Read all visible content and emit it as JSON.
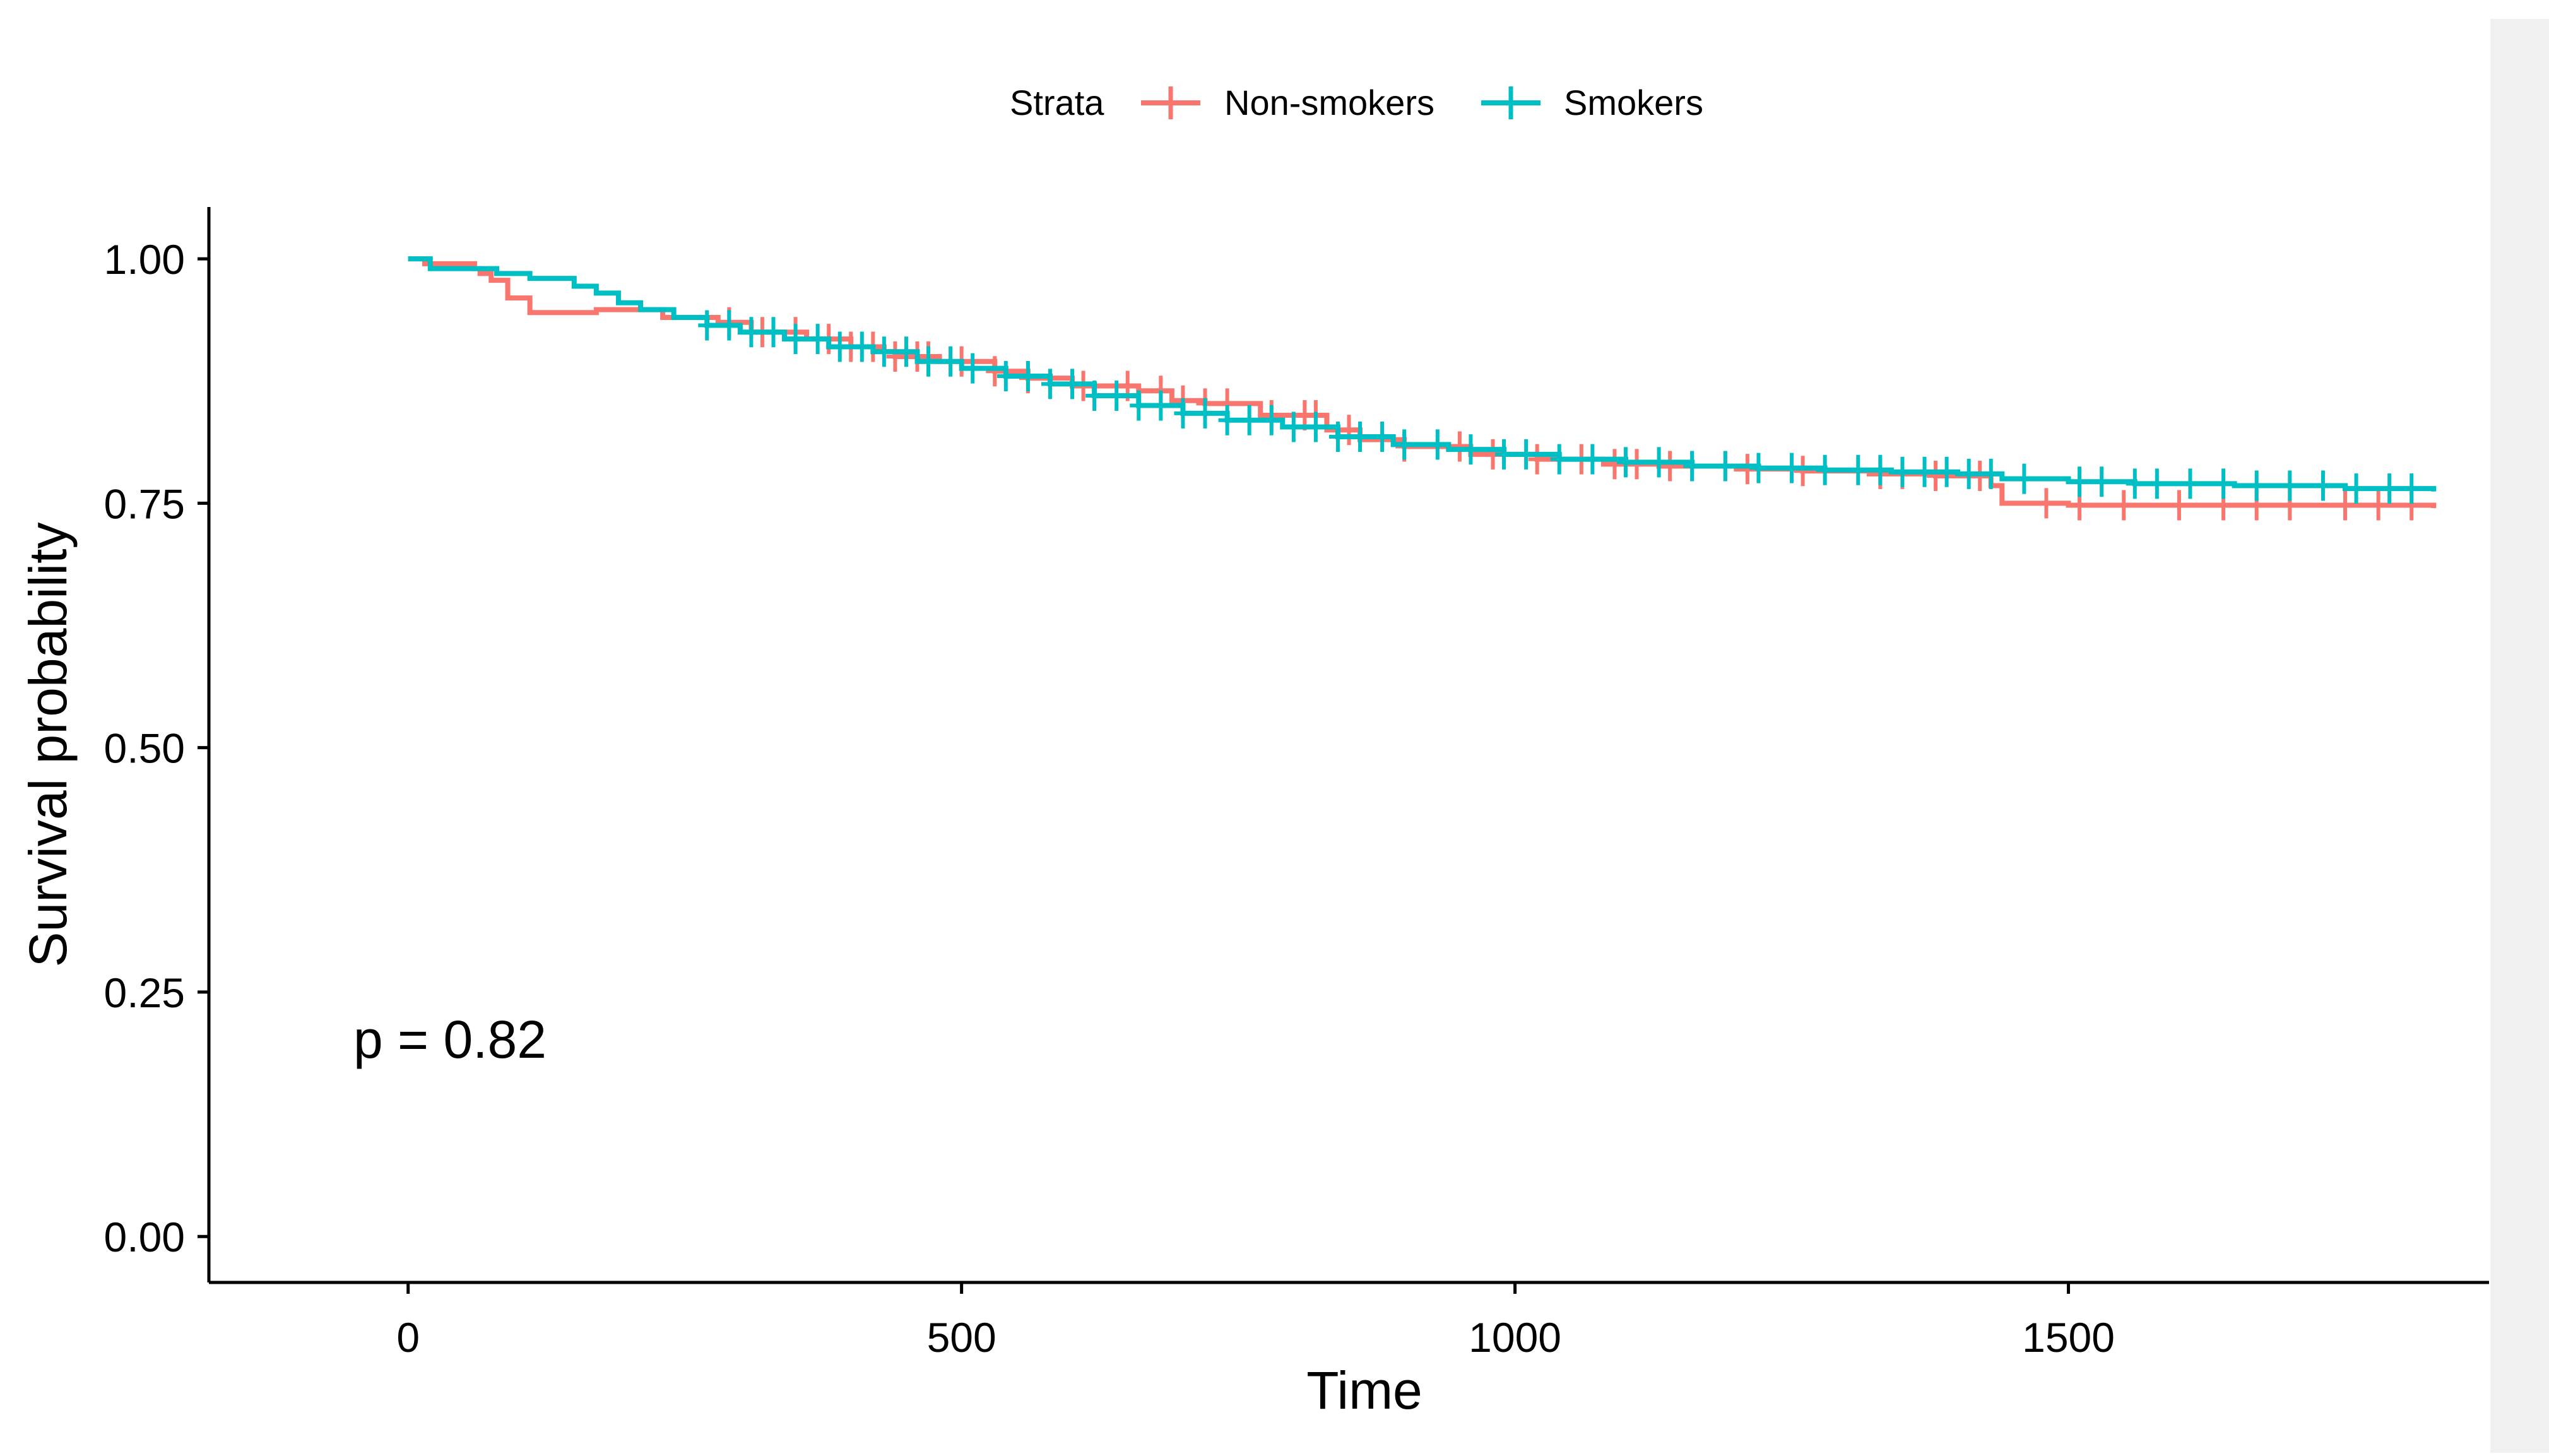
{
  "colors": {
    "non_smokers": "#F8766D",
    "smokers": "#00BFC4",
    "axis": "#000000",
    "background": "#ffffff",
    "side_panel": "#f0f0f0"
  },
  "legend": {
    "title": "Strata",
    "position": "top-center"
  },
  "annotation": {
    "text": "p = 0.82"
  },
  "chart_data": {
    "type": "line",
    "subtype": "kaplan-meier-step",
    "title": "",
    "xlabel": "Time",
    "ylabel": "Survival probability",
    "xlim": [
      -180,
      1880
    ],
    "ylim": [
      -0.047,
      1.053
    ],
    "xticks": [
      0,
      500,
      1000,
      1500
    ],
    "xtick_labels": [
      "0",
      "500",
      "1000",
      "1500"
    ],
    "yticks": [
      0,
      0.25,
      0.5,
      0.75,
      1
    ],
    "ytick_labels": [
      "0.00",
      "0.25",
      "0.50",
      "0.75",
      "1.00"
    ],
    "grid": false,
    "legend_position": "top-center",
    "annotations": [
      "p = 0.82"
    ],
    "series": [
      {
        "name": "Non-smokers",
        "color": "#F8766D",
        "steps": [
          [
            0,
            1.0
          ],
          [
            15,
            0.995
          ],
          [
            60,
            0.99
          ],
          [
            65,
            0.985
          ],
          [
            75,
            0.978
          ],
          [
            90,
            0.96
          ],
          [
            110,
            0.945
          ],
          [
            170,
            0.948
          ],
          [
            200,
            0.948
          ],
          [
            230,
            0.94
          ],
          [
            280,
            0.935
          ],
          [
            310,
            0.925
          ],
          [
            360,
            0.918
          ],
          [
            400,
            0.91
          ],
          [
            430,
            0.905
          ],
          [
            440,
            0.9
          ],
          [
            480,
            0.895
          ],
          [
            530,
            0.885
          ],
          [
            560,
            0.878
          ],
          [
            600,
            0.87
          ],
          [
            640,
            0.87
          ],
          [
            660,
            0.865
          ],
          [
            690,
            0.855
          ],
          [
            720,
            0.852
          ],
          [
            770,
            0.84
          ],
          [
            830,
            0.825
          ],
          [
            860,
            0.815
          ],
          [
            900,
            0.808
          ],
          [
            960,
            0.8
          ],
          [
            1020,
            0.795
          ],
          [
            1080,
            0.79
          ],
          [
            1130,
            0.788
          ],
          [
            1200,
            0.785
          ],
          [
            1260,
            0.783
          ],
          [
            1320,
            0.78
          ],
          [
            1380,
            0.778
          ],
          [
            1430,
            0.768
          ],
          [
            1440,
            0.75
          ],
          [
            1500,
            0.748
          ],
          [
            1830,
            0.745
          ]
        ],
        "censor_times": [
          290,
          320,
          350,
          380,
          400,
          420,
          440,
          460,
          470,
          500,
          530,
          560,
          610,
          650,
          680,
          700,
          720,
          740,
          780,
          810,
          820,
          850,
          900,
          950,
          980,
          1020,
          1060,
          1090,
          1110,
          1140,
          1160,
          1190,
          1210,
          1260,
          1330,
          1350,
          1380,
          1420,
          1480,
          1510,
          1550,
          1600,
          1640,
          1670,
          1700,
          1750,
          1780,
          1810
        ]
      },
      {
        "name": "Smokers",
        "color": "#00BFC4",
        "steps": [
          [
            0,
            1.0
          ],
          [
            20,
            0.99
          ],
          [
            50,
            0.99
          ],
          [
            80,
            0.985
          ],
          [
            110,
            0.98
          ],
          [
            150,
            0.972
          ],
          [
            170,
            0.965
          ],
          [
            190,
            0.955
          ],
          [
            210,
            0.948
          ],
          [
            240,
            0.94
          ],
          [
            270,
            0.932
          ],
          [
            300,
            0.925
          ],
          [
            340,
            0.918
          ],
          [
            380,
            0.91
          ],
          [
            420,
            0.905
          ],
          [
            460,
            0.895
          ],
          [
            500,
            0.888
          ],
          [
            540,
            0.88
          ],
          [
            580,
            0.872
          ],
          [
            620,
            0.86
          ],
          [
            660,
            0.85
          ],
          [
            700,
            0.842
          ],
          [
            740,
            0.835
          ],
          [
            790,
            0.828
          ],
          [
            840,
            0.818
          ],
          [
            890,
            0.81
          ],
          [
            940,
            0.805
          ],
          [
            990,
            0.8
          ],
          [
            1040,
            0.795
          ],
          [
            1100,
            0.792
          ],
          [
            1160,
            0.788
          ],
          [
            1220,
            0.786
          ],
          [
            1280,
            0.784
          ],
          [
            1340,
            0.782
          ],
          [
            1400,
            0.78
          ],
          [
            1440,
            0.775
          ],
          [
            1500,
            0.772
          ],
          [
            1560,
            0.77
          ],
          [
            1650,
            0.768
          ],
          [
            1750,
            0.765
          ],
          [
            1830,
            0.762
          ]
        ],
        "censor_times": [
          270,
          290,
          310,
          330,
          350,
          370,
          390,
          410,
          430,
          450,
          470,
          490,
          510,
          540,
          560,
          580,
          600,
          620,
          640,
          660,
          680,
          700,
          720,
          740,
          760,
          780,
          800,
          820,
          840,
          860,
          880,
          900,
          930,
          960,
          990,
          1010,
          1040,
          1070,
          1100,
          1130,
          1160,
          1190,
          1220,
          1250,
          1280,
          1310,
          1330,
          1350,
          1370,
          1390,
          1410,
          1430,
          1460,
          1510,
          1530,
          1560,
          1580,
          1610,
          1640,
          1670,
          1700,
          1730,
          1760,
          1790,
          1810
        ]
      }
    ]
  }
}
